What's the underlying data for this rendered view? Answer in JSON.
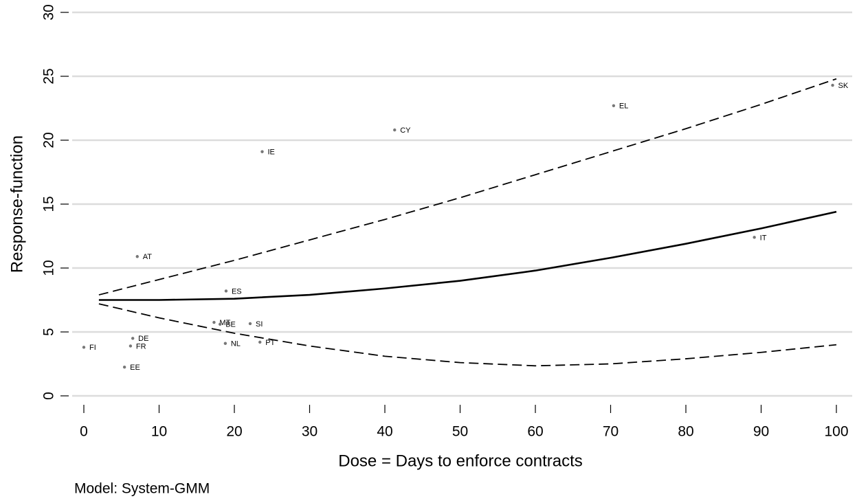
{
  "chart_data": {
    "type": "line",
    "ylabel": "Response-function",
    "xlabel": "Dose = Days to enforce contracts",
    "note": "Model: System-GMM",
    "x": [
      2,
      10,
      20,
      30,
      40,
      50,
      60,
      70,
      80,
      90,
      100
    ],
    "series": [
      {
        "color": "#000000",
        "style": "solid",
        "values": [
          7.5,
          7.5,
          7.6,
          7.9,
          8.4,
          9.0,
          9.8,
          10.8,
          11.9,
          13.1,
          14.4
        ]
      },
      {
        "color": "#000000",
        "style": "dashed",
        "values": [
          7.9,
          9.1,
          10.6,
          12.2,
          13.8,
          15.5,
          17.3,
          19.1,
          20.9,
          22.8,
          24.8
        ]
      },
      {
        "color": "#000000",
        "style": "dashed",
        "values": [
          7.2,
          6.1,
          4.9,
          3.9,
          3.1,
          2.6,
          2.35,
          2.5,
          2.9,
          3.4,
          4.0
        ]
      }
    ],
    "points": {
      "color": "#777777",
      "labels": [
        "FI",
        "EE",
        "DE",
        "FR",
        "AT",
        "ES",
        "MT",
        "BE",
        "NL",
        "SI",
        "PT",
        "IE",
        "CY",
        "EL",
        "IT",
        "SK"
      ],
      "x": [
        0,
        5.4,
        6.5,
        6.2,
        7.1,
        18.9,
        17.3,
        18.1,
        18.8,
        22.1,
        23.4,
        23.7,
        41.3,
        70.4,
        89.1,
        99.5
      ],
      "values": [
        3.8,
        2.25,
        4.5,
        3.9,
        10.9,
        8.2,
        5.75,
        5.6,
        4.1,
        5.65,
        4.2,
        19.1,
        20.8,
        22.7,
        12.4,
        24.3
      ]
    },
    "xlim": [
      0,
      100
    ],
    "xticks": [
      0,
      10,
      20,
      30,
      40,
      50,
      60,
      70,
      80,
      90,
      100
    ],
    "ylim": [
      0,
      30
    ],
    "yticks": [
      0,
      5,
      10,
      15,
      20,
      25,
      30
    ],
    "grid": true
  }
}
